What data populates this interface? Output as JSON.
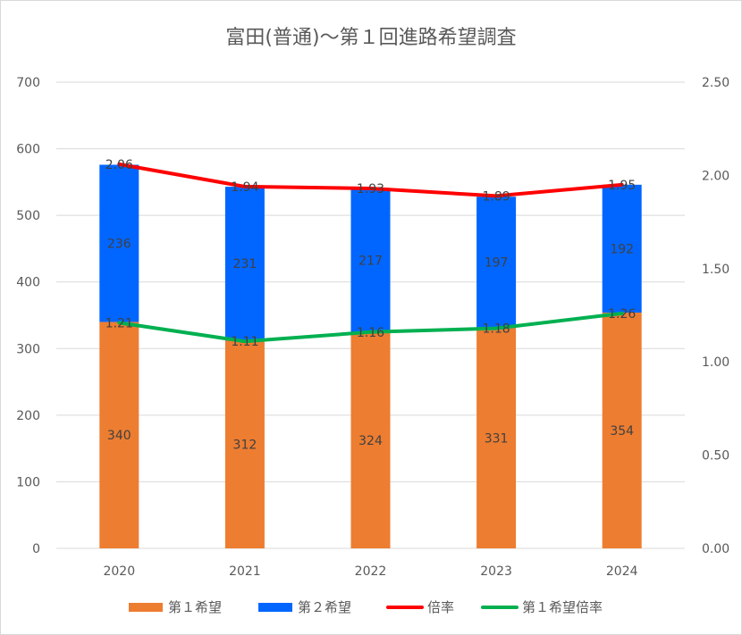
{
  "chart_data": {
    "type": "bar",
    "stacked": true,
    "title": "富田(普通)～第１回進路希望調査",
    "categories": [
      "2020",
      "2021",
      "2022",
      "2023",
      "2024"
    ],
    "series": [
      {
        "name": "第１希望",
        "kind": "bar",
        "axis": "left",
        "color": "#ed7d31",
        "values": [
          340,
          312,
          324,
          331,
          354
        ],
        "labels": [
          "340",
          "312",
          "324",
          "331",
          "354"
        ]
      },
      {
        "name": "第２希望",
        "kind": "bar",
        "axis": "left",
        "color": "#0066ff",
        "values": [
          236,
          231,
          217,
          197,
          192
        ],
        "labels": [
          "236",
          "231",
          "217",
          "197",
          "192"
        ]
      },
      {
        "name": "倍率",
        "kind": "line",
        "axis": "right",
        "color": "#ff0000",
        "values": [
          2.06,
          1.94,
          1.93,
          1.89,
          1.95
        ],
        "labels": [
          "2.06",
          "1.94",
          "1.93",
          "1.89",
          "1.95"
        ]
      },
      {
        "name": "第１希望倍率",
        "kind": "line",
        "axis": "right",
        "color": "#00b050",
        "values": [
          1.21,
          1.11,
          1.16,
          1.18,
          1.26
        ],
        "labels": [
          "1.21",
          "1.11",
          "1.16",
          "1.18",
          "1.26"
        ]
      }
    ],
    "y_left": {
      "min": 0,
      "max": 700,
      "ticks": [
        "0",
        "100",
        "200",
        "300",
        "400",
        "500",
        "600",
        "700"
      ]
    },
    "y_right": {
      "min": 0,
      "max": 2.5,
      "ticks": [
        "0.00",
        "0.50",
        "1.00",
        "1.50",
        "2.00",
        "2.50"
      ]
    },
    "grid": true,
    "legend": "bottom"
  }
}
